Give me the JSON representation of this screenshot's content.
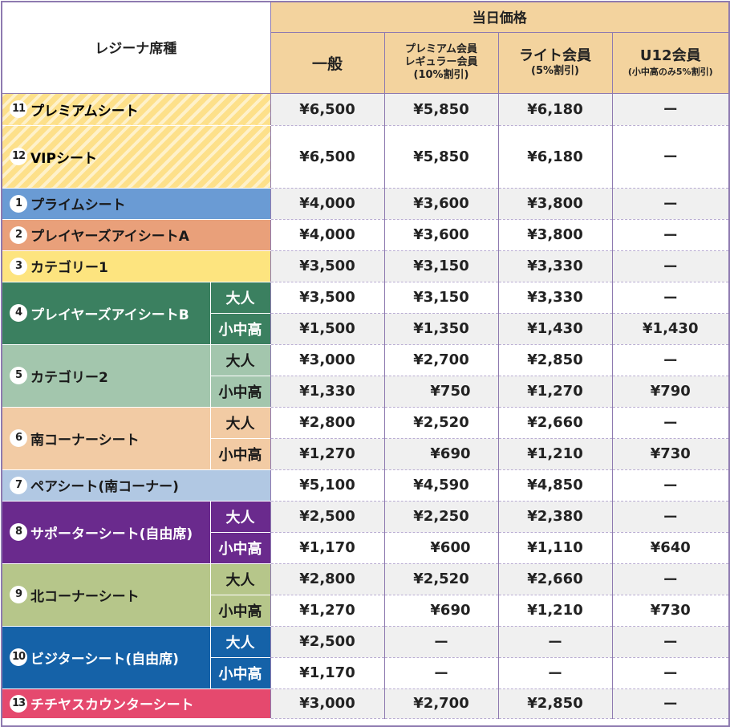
{
  "header": {
    "seat_type": "レジーナ席種",
    "sameday": "当日価格",
    "general": "一般",
    "premium_line1": "プレミアム会員",
    "premium_line2": "レギュラー会員",
    "premium_line3": "(10%割引)",
    "lite": "ライト会員",
    "lite_sub": "(5%割引)",
    "u12": "U12会員",
    "u12_sub": "(小中高のみ5%割引)"
  },
  "colors": {
    "header_bg": "#f3d39e",
    "border": "#8e7ab0",
    "premium_stripe": "#fde08a",
    "prime": "#6a9bd4",
    "players_eye_a": "#e9a07a",
    "category1": "#fde47f",
    "players_eye_b": "#3b8060",
    "category2": "#a3c6ad",
    "south_corner": "#f2cba4",
    "pair": "#b1c8e3",
    "supporter": "#6a2a8d",
    "north_corner": "#b6c68a",
    "visitor": "#1562a8",
    "chichiyasu": "#e5496e"
  },
  "labels": {
    "adult": "大人",
    "student": "小中高"
  },
  "seats": [
    {
      "num": "11",
      "name": "プレミアムシート",
      "prices": [
        "¥6,500",
        "¥5,850",
        "¥6,180",
        "ー"
      ]
    },
    {
      "num": "12",
      "name": "VIPシート",
      "prices": [
        "¥6,500",
        "¥5,850",
        "¥6,180",
        "ー"
      ]
    },
    {
      "num": "1",
      "name": "プライムシート",
      "prices": [
        "¥4,000",
        "¥3,600",
        "¥3,800",
        "ー"
      ]
    },
    {
      "num": "2",
      "name": "プレイヤーズアイシートA",
      "prices": [
        "¥4,000",
        "¥3,600",
        "¥3,800",
        "ー"
      ]
    },
    {
      "num": "3",
      "name": "カテゴリー1",
      "prices": [
        "¥3,500",
        "¥3,150",
        "¥3,330",
        "ー"
      ]
    },
    {
      "num": "4",
      "name": "プレイヤーズアイシートB",
      "adult": [
        "¥3,500",
        "¥3,150",
        "¥3,330",
        "ー"
      ],
      "student": [
        "¥1,500",
        "¥1,350",
        "¥1,430",
        "¥1,430"
      ]
    },
    {
      "num": "5",
      "name": "カテゴリー2",
      "adult": [
        "¥3,000",
        "¥2,700",
        "¥2,850",
        "ー"
      ],
      "student": [
        "¥1,330",
        "¥750",
        "¥1,270",
        "¥790"
      ]
    },
    {
      "num": "6",
      "name": "南コーナーシート",
      "adult": [
        "¥2,800",
        "¥2,520",
        "¥2,660",
        "ー"
      ],
      "student": [
        "¥1,270",
        "¥690",
        "¥1,210",
        "¥730"
      ]
    },
    {
      "num": "7",
      "name": "ペアシート(南コーナー)",
      "prices": [
        "¥5,100",
        "¥4,590",
        "¥4,850",
        "ー"
      ]
    },
    {
      "num": "8",
      "name": "サポーターシート(自由席)",
      "adult": [
        "¥2,500",
        "¥2,250",
        "¥2,380",
        "ー"
      ],
      "student": [
        "¥1,170",
        "¥600",
        "¥1,110",
        "¥640"
      ]
    },
    {
      "num": "9",
      "name": "北コーナーシート",
      "adult": [
        "¥2,800",
        "¥2,520",
        "¥2,660",
        "ー"
      ],
      "student": [
        "¥1,270",
        "¥690",
        "¥1,210",
        "¥730"
      ]
    },
    {
      "num": "10",
      "name": "ビジターシート(自由席)",
      "adult": [
        "¥2,500",
        "ー",
        "ー",
        "ー"
      ],
      "student": [
        "¥1,170",
        "ー",
        "ー",
        "ー"
      ]
    },
    {
      "num": "13",
      "name": "チチヤスカウンターシート",
      "prices": [
        "¥3,000",
        "¥2,700",
        "¥2,850",
        "ー"
      ]
    }
  ]
}
